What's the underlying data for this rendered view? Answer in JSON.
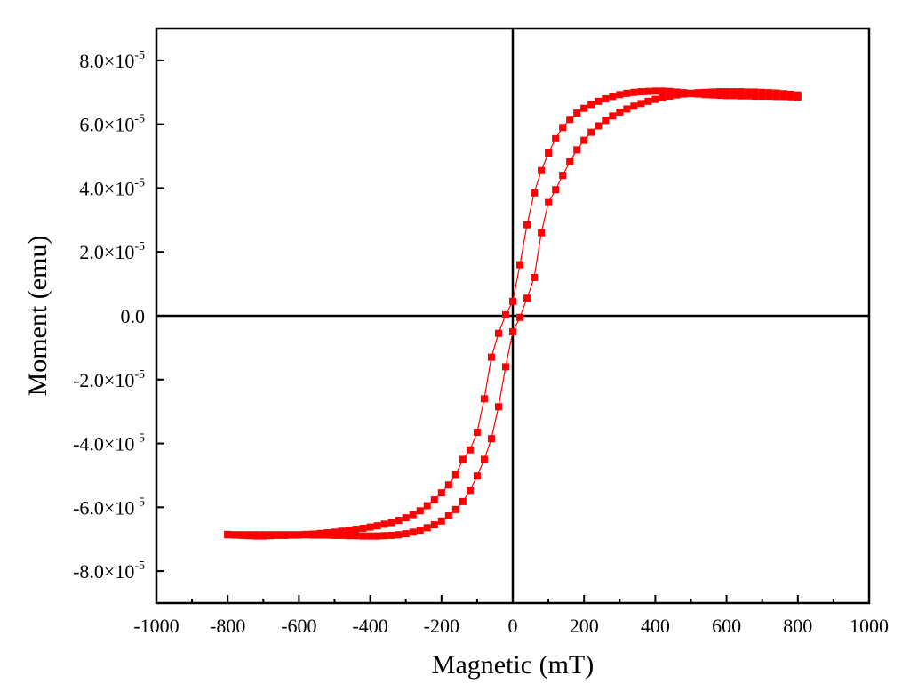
{
  "chart_data": {
    "type": "scatter",
    "xlabel": "Magnetic (mT)",
    "ylabel": "Moment (emu)",
    "xlim": [
      -1000,
      1000
    ],
    "ylim": [
      -9e-05,
      9e-05
    ],
    "xticks": [
      {
        "value": -1000,
        "label": "-1000"
      },
      {
        "value": -800,
        "label": "-800"
      },
      {
        "value": -600,
        "label": "-600"
      },
      {
        "value": -400,
        "label": "-400"
      },
      {
        "value": -200,
        "label": "-200"
      },
      {
        "value": 0,
        "label": "0"
      },
      {
        "value": 200,
        "label": "200"
      },
      {
        "value": 400,
        "label": "400"
      },
      {
        "value": 600,
        "label": "600"
      },
      {
        "value": 800,
        "label": "800"
      },
      {
        "value": 1000,
        "label": "1000"
      }
    ],
    "yticks": [
      {
        "value": 8e-05,
        "mantissa": "8.0",
        "exponent": "-5"
      },
      {
        "value": 6e-05,
        "mantissa": "6.0",
        "exponent": "-5"
      },
      {
        "value": 4e-05,
        "mantissa": "4.0",
        "exponent": "-5"
      },
      {
        "value": 2e-05,
        "mantissa": "2.0",
        "exponent": "-5"
      },
      {
        "value": 0,
        "mantissa": "0.0",
        "exponent": ""
      },
      {
        "value": -2e-05,
        "mantissa": "-2.0",
        "exponent": "-5"
      },
      {
        "value": -4e-05,
        "mantissa": "-4.0",
        "exponent": "-5"
      },
      {
        "value": -6e-05,
        "mantissa": "-6.0",
        "exponent": "-5"
      },
      {
        "value": -8e-05,
        "mantissa": "-8.0",
        "exponent": "-5"
      }
    ],
    "times_symbol": "×10",
    "grid": false,
    "zero_lines": true,
    "series_color": "#ff0000",
    "axis_color": "#000000",
    "series": [
      {
        "marker": "square",
        "x": [
          -800,
          -780,
          -760,
          -740,
          -720,
          -700,
          -680,
          -660,
          -640,
          -620,
          -600,
          -580,
          -560,
          -540,
          -520,
          -500,
          -480,
          -460,
          -440,
          -420,
          -400,
          -380,
          -360,
          -340,
          -320,
          -300,
          -280,
          -260,
          -240,
          -220,
          -200,
          -180,
          -160,
          -140,
          -120,
          -100,
          -80,
          -60,
          -40,
          -20,
          0,
          20,
          40,
          60,
          80,
          100,
          120,
          140,
          160,
          180,
          200,
          220,
          240,
          260,
          280,
          300,
          320,
          340,
          360,
          380,
          400,
          420,
          440,
          460,
          480,
          500,
          520,
          540,
          560,
          580,
          600,
          620,
          640,
          660,
          680,
          700,
          720,
          740,
          760,
          780,
          800
        ],
        "y": [
          -6.85e-05,
          -6.87e-05,
          -6.88e-05,
          -6.89e-05,
          -6.9e-05,
          -6.9e-05,
          -6.89e-05,
          -6.88e-05,
          -6.88e-05,
          -6.87e-05,
          -6.87e-05,
          -6.85e-05,
          -6.84e-05,
          -6.82e-05,
          -6.8e-05,
          -6.78e-05,
          -6.75e-05,
          -6.72e-05,
          -6.69e-05,
          -6.66e-05,
          -6.62e-05,
          -6.58e-05,
          -6.53e-05,
          -6.48e-05,
          -6.41e-05,
          -6.33e-05,
          -6.23e-05,
          -6.11e-05,
          -5.95e-05,
          -5.77e-05,
          -5.55e-05,
          -5.3e-05,
          -4.97e-05,
          -4.5e-05,
          -4.2e-05,
          -3.65e-05,
          -2.6e-05,
          -1.3e-05,
          -5.5e-06,
          3e-07,
          4.5e-06,
          1.6e-05,
          2.85e-05,
          3.85e-05,
          4.55e-05,
          5.1e-05,
          5.55e-05,
          5.9e-05,
          6.15e-05,
          6.35e-05,
          6.5e-05,
          6.62e-05,
          6.72e-05,
          6.8e-05,
          6.87e-05,
          6.93e-05,
          6.97e-05,
          7e-05,
          7.02e-05,
          7.03e-05,
          7.04e-05,
          7.04e-05,
          7.03e-05,
          7.01e-05,
          6.99e-05,
          6.97e-05,
          6.95e-05,
          6.93e-05,
          6.92e-05,
          6.91e-05,
          6.9e-05,
          6.9e-05,
          6.89e-05,
          6.89e-05,
          6.88e-05,
          6.88e-05,
          6.88e-05,
          6.87e-05,
          6.87e-05,
          6.86e-05,
          6.85e-05
        ]
      },
      {
        "marker": "square",
        "x": [
          800,
          780,
          760,
          740,
          720,
          700,
          680,
          660,
          640,
          620,
          600,
          580,
          560,
          540,
          520,
          500,
          480,
          460,
          440,
          420,
          400,
          380,
          360,
          340,
          320,
          300,
          280,
          260,
          240,
          220,
          200,
          180,
          160,
          140,
          120,
          100,
          80,
          60,
          40,
          20,
          0,
          -20,
          -40,
          -60,
          -80,
          -100,
          -120,
          -140,
          -160,
          -180,
          -200,
          -220,
          -240,
          -260,
          -280,
          -300,
          -320,
          -340,
          -360,
          -380,
          -400,
          -420,
          -440,
          -460,
          -480,
          -500,
          -520,
          -540,
          -560,
          -580,
          -600,
          -620,
          -640,
          -660,
          -680,
          -700,
          -720,
          -740,
          -760,
          -780,
          -800
        ],
        "y": [
          6.92e-05,
          6.94e-05,
          6.96e-05,
          6.98e-05,
          6.99e-05,
          7e-05,
          7.01e-05,
          7.01e-05,
          7.02e-05,
          7.02e-05,
          7.02e-05,
          7.02e-05,
          7.01e-05,
          7e-05,
          6.99e-05,
          6.97e-05,
          6.95e-05,
          6.92e-05,
          6.88e-05,
          6.83e-05,
          6.78e-05,
          6.72e-05,
          6.65e-05,
          6.57e-05,
          6.48e-05,
          6.38e-05,
          6.26e-05,
          6.12e-05,
          5.95e-05,
          5.75e-05,
          5.5e-05,
          5.2e-05,
          4.82e-05,
          4.4e-05,
          3.95e-05,
          3.55e-05,
          2.6e-05,
          1.2e-05,
          5.5e-06,
          -5e-07,
          -5e-06,
          -1.6e-05,
          -2.85e-05,
          -3.85e-05,
          -4.5e-05,
          -5.02e-05,
          -5.47e-05,
          -5.82e-05,
          -6.07e-05,
          -6.27e-05,
          -6.43e-05,
          -6.55e-05,
          -6.64e-05,
          -6.72e-05,
          -6.78e-05,
          -6.83e-05,
          -6.86e-05,
          -6.88e-05,
          -6.89e-05,
          -6.9e-05,
          -6.9e-05,
          -6.9e-05,
          -6.89e-05,
          -6.89e-05,
          -6.88e-05,
          -6.88e-05,
          -6.87e-05,
          -6.87e-05,
          -6.87e-05,
          -6.86e-05,
          -6.86e-05,
          -6.86e-05,
          -6.86e-05,
          -6.86e-05,
          -6.86e-05,
          -6.86e-05,
          -6.86e-05,
          -6.86e-05,
          -6.86e-05,
          -6.86e-05,
          -6.86e-05
        ]
      }
    ]
  }
}
